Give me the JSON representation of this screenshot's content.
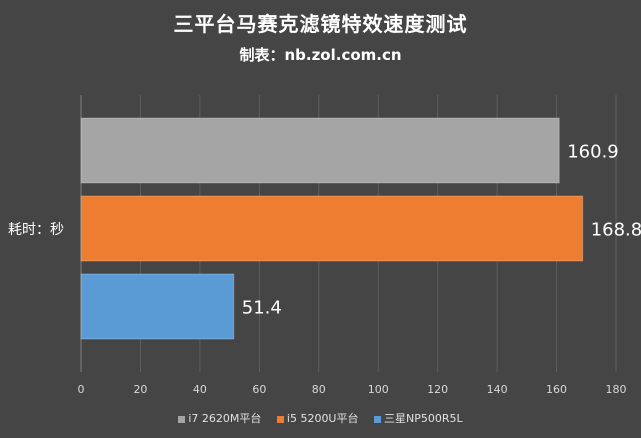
{
  "chart_data": {
    "type": "bar",
    "orientation": "horizontal",
    "title": "三平台马赛克滤镜特效速度测试",
    "subtitle": "制表：nb.zol.com.cn",
    "ylabel": "耗时：秒",
    "xlim": [
      0,
      180
    ],
    "xticks": [
      0,
      20,
      40,
      60,
      80,
      100,
      120,
      140,
      160,
      180
    ],
    "grid": true,
    "legend_position": "bottom",
    "series": [
      {
        "name": "i7 2620M平台",
        "value": 160.9,
        "label": "160.9",
        "color": "#a5a5a5"
      },
      {
        "name": "i5 5200U平台",
        "value": 168.8,
        "label": "168.8",
        "color": "#ed7d31"
      },
      {
        "name": "三星NP500R5L",
        "value": 51.4,
        "label": "51.4",
        "color": "#5b9bd5"
      }
    ]
  }
}
